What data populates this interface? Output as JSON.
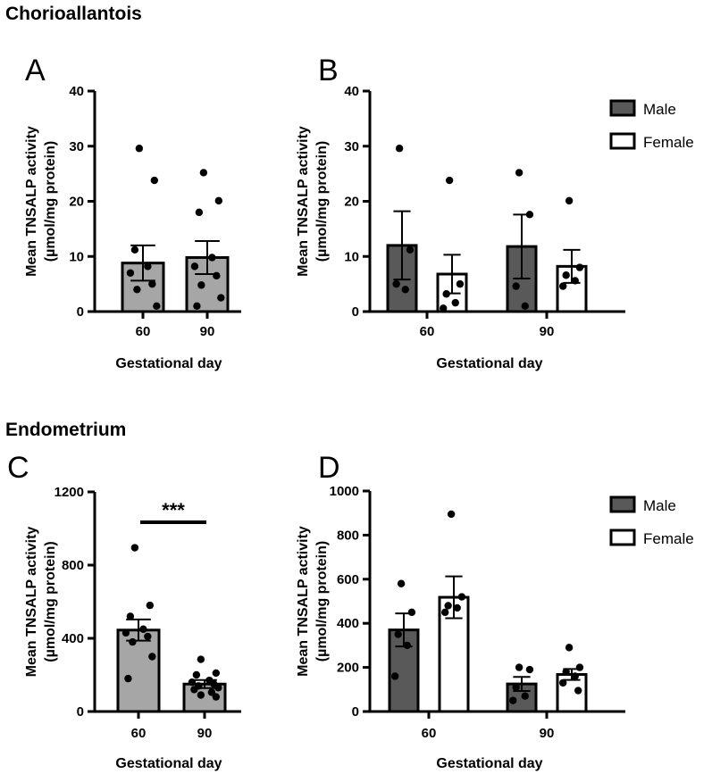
{
  "sections": {
    "top": "Chorioallantois",
    "bottom": "Endometrium"
  },
  "colors": {
    "overall_bar": "#a6a6a6",
    "male_bar": "#595959",
    "female_bar": "#ffffff",
    "stroke": "#000000"
  },
  "chart_data": [
    {
      "panel": "A",
      "type": "bar",
      "title": "",
      "categories": [
        "60",
        "90"
      ],
      "values": [
        8.8,
        9.8
      ],
      "sem": [
        3.2,
        3.0
      ],
      "points": [
        [
          29.6,
          23.8,
          11.2,
          8.2,
          7.0,
          5.0,
          4.0,
          1.0
        ],
        [
          25.2,
          20.1,
          18.0,
          9.8,
          8.2,
          6.5,
          4.8,
          2.5,
          1.0
        ]
      ],
      "ylabel": "Mean TNSALP activity\n(µmol/mg protein)",
      "xlabel": "Gestational day",
      "ylim": [
        0,
        40
      ],
      "yticks": [
        0,
        10,
        20,
        30,
        40
      ],
      "ytick_labels": [
        "0",
        "10",
        "20",
        "30",
        "40"
      ]
    },
    {
      "panel": "B",
      "type": "bar",
      "title": "",
      "categories": [
        "60",
        "90"
      ],
      "series": [
        {
          "name": "Male",
          "values": [
            12.0,
            11.8
          ],
          "sem": [
            6.2,
            5.8
          ],
          "points": [
            [
              29.6,
              11.2,
              5.0,
              4.0
            ],
            [
              25.2,
              17.6,
              4.6,
              1.0
            ]
          ]
        },
        {
          "name": "Female",
          "values": [
            6.8,
            8.2
          ],
          "sem": [
            3.5,
            3.0
          ],
          "points": [
            [
              23.8,
              5.0,
              3.2,
              1.6,
              0.6
            ],
            [
              20.1,
              8.0,
              6.6,
              5.6,
              4.6
            ]
          ]
        }
      ],
      "legend": [
        "Male",
        "Female"
      ],
      "legend_position": "right",
      "ylabel": "Mean TNSALP activity\n(µmol/mg protein)",
      "xlabel": "Gestational day",
      "ylim": [
        0,
        40
      ],
      "yticks": [
        0,
        10,
        20,
        30,
        40
      ],
      "ytick_labels": [
        "0",
        "10",
        "20",
        "30",
        "40"
      ]
    },
    {
      "panel": "C",
      "type": "bar",
      "title": "",
      "categories": [
        "60",
        "90"
      ],
      "values": [
        445,
        150
      ],
      "sem": [
        58,
        22
      ],
      "points": [
        [
          895,
          580,
          520,
          450,
          430,
          410,
          380,
          300,
          180
        ],
        [
          285,
          210,
          200,
          170,
          160,
          150,
          140,
          130,
          120,
          105,
          90,
          80
        ]
      ],
      "significance": "***",
      "ylabel": "Mean TNSALP activity\n(µmol/mg protein)",
      "xlabel": "Gestational day",
      "ylim": [
        0,
        1200
      ],
      "yticks": [
        0,
        400,
        800,
        1200
      ],
      "ytick_labels": [
        "0",
        "400",
        "800",
        "1200"
      ]
    },
    {
      "panel": "D",
      "type": "bar",
      "title": "",
      "categories": [
        "60",
        "90"
      ],
      "series": [
        {
          "name": "Male",
          "values": [
            370,
            125
          ],
          "sem": [
            75,
            32
          ],
          "points": [
            [
              580,
              450,
              350,
              300,
              160
            ],
            [
              200,
              190,
              110,
              70,
              50
            ]
          ]
        },
        {
          "name": "Female",
          "values": [
            518,
            168
          ],
          "sem": [
            95,
            25
          ],
          "points": [
            [
              895,
              520,
              480,
              470,
              450
            ],
            [
              290,
              200,
              180,
              160,
              130,
              95
            ]
          ]
        }
      ],
      "legend": [
        "Male",
        "Female"
      ],
      "legend_position": "right",
      "ylabel": "Mean TNSALP activity\n(µmol/mg protein)",
      "xlabel": "Gestational day",
      "ylim": [
        0,
        1000
      ],
      "yticks": [
        0,
        200,
        400,
        600,
        800,
        1000
      ],
      "ytick_labels": [
        "0",
        "200",
        "400",
        "600",
        "800",
        "1000"
      ]
    }
  ]
}
